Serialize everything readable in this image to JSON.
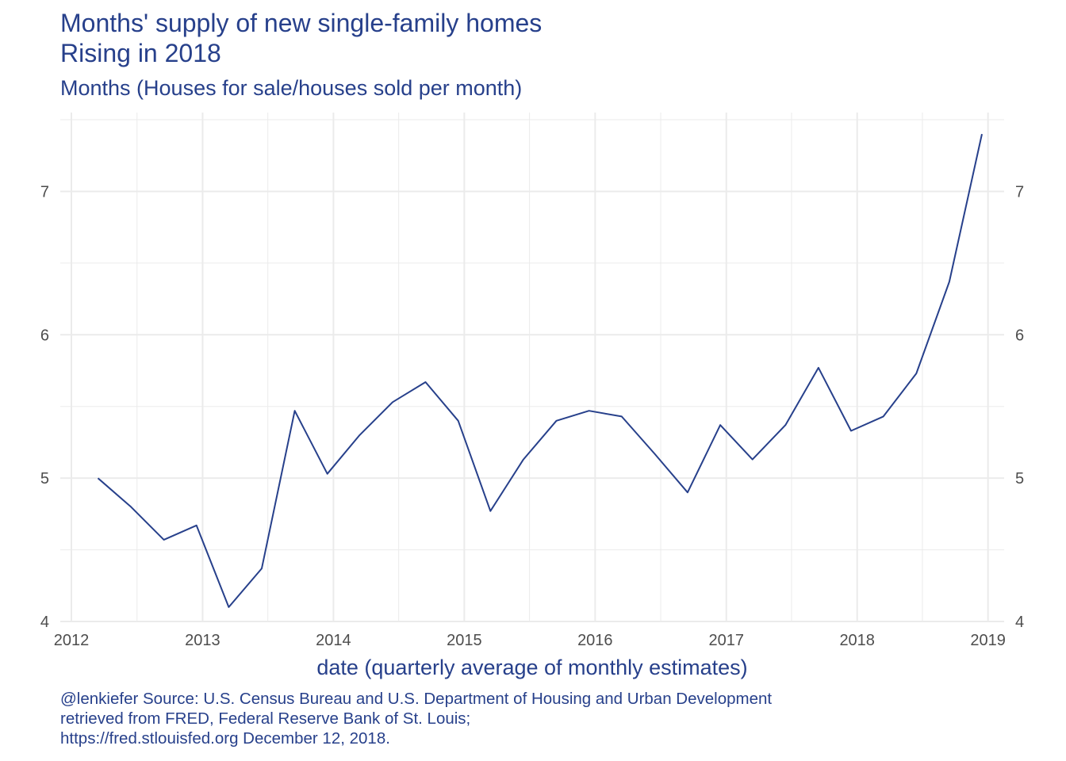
{
  "header": {
    "title_lines": [
      "Months' supply of new single-family homes",
      "Rising in 2018"
    ],
    "subtitle": "Months (Houses for sale/houses sold per month)"
  },
  "caption": {
    "lines": [
      "@lenkiefer Source: U.S. Census Bureau and U.S. Department of Housing and Urban Development",
      "retrieved from FRED, Federal Reserve Bank of St. Louis;",
      "https://fred.stlouisfed.org December 12, 2018."
    ]
  },
  "colors": {
    "line": "#27408b",
    "grid": "#ebebeb",
    "text": "#27408b",
    "tick": "#4d4d4d"
  },
  "chart_data": {
    "type": "line",
    "title": "Months' supply of new single-family homes",
    "subtitle": "Rising in 2018",
    "ylabel": "Months (Houses for sale/houses sold per month)",
    "xlabel": "date (quarterly average of monthly estimates)",
    "x_ticks": [
      "2012",
      "2013",
      "2014",
      "2015",
      "2016",
      "2017",
      "2018",
      "2019"
    ],
    "y_ticks": [
      4,
      5,
      6,
      7
    ],
    "xlim": [
      "2011-12-01",
      "2019-02-15"
    ],
    "ylim": [
      4,
      7.55
    ],
    "y_axis_sides": [
      "left",
      "right"
    ],
    "grid": true,
    "series": [
      {
        "x": [
          "2012-03-15",
          "2012-06-15",
          "2012-09-15",
          "2012-12-15",
          "2013-03-15",
          "2013-06-15",
          "2013-09-15",
          "2013-12-15",
          "2014-03-15",
          "2014-06-15",
          "2014-09-15",
          "2014-12-15",
          "2015-03-15",
          "2015-06-15",
          "2015-09-15",
          "2015-12-15",
          "2016-03-15",
          "2016-06-15",
          "2016-09-15",
          "2016-12-15",
          "2017-03-15",
          "2017-06-15",
          "2017-09-15",
          "2017-12-15",
          "2018-03-15",
          "2018-06-15",
          "2018-09-15",
          "2018-12-15"
        ],
        "values": [
          5.0,
          4.8,
          4.57,
          4.67,
          4.1,
          4.37,
          5.47,
          5.03,
          5.3,
          5.53,
          5.67,
          5.4,
          4.77,
          5.13,
          5.4,
          5.47,
          5.43,
          5.17,
          4.9,
          5.37,
          5.13,
          5.37,
          5.77,
          5.33,
          5.43,
          5.73,
          6.37,
          7.4
        ]
      }
    ]
  }
}
